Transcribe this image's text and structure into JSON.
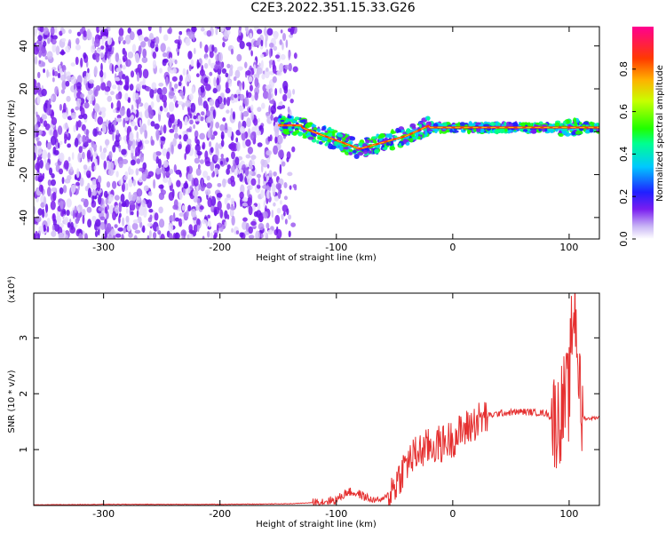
{
  "title": "C2E3.2022.351.15.33.G26",
  "chart_data": [
    {
      "type": "heatmap",
      "xlabel": "Height of straight line (km)",
      "ylabel": "Frequency (Hz)",
      "xlim": [
        -360,
        126
      ],
      "ylim": [
        -50,
        49
      ],
      "xticks": [
        -300,
        -200,
        -100,
        0,
        100
      ],
      "yticks": [
        -40,
        -20,
        0,
        20,
        40
      ],
      "colorbar": {
        "label": "Normalized spectral amplitude",
        "range": [
          0.0,
          1.0
        ],
        "ticks": [
          "0.0",
          "0.2",
          "0.4",
          "0.6",
          "0.8"
        ],
        "tick_values": [
          0.0,
          0.2,
          0.4,
          0.6,
          0.8
        ]
      },
      "features": {
        "noise_region_x": [
          -360,
          -135
        ],
        "signal_line_frequency": 2,
        "signal_line_x": [
          -150,
          126
        ]
      }
    },
    {
      "type": "line",
      "xlabel": "Height of straight line (km)",
      "ylabel": "SNR (10 * v/v)",
      "yscale_label": "(x10⁴)",
      "xlim": [
        -360,
        126
      ],
      "ylim": [
        0,
        3.8
      ],
      "xticks": [
        -300,
        -200,
        -100,
        0,
        100
      ],
      "yticks": [
        1,
        2,
        3
      ],
      "series": [
        {
          "color": "#e53030",
          "x": [
            -360,
            -300,
            -200,
            -140,
            -120,
            -100,
            -90,
            -80,
            -70,
            -60,
            -50,
            -40,
            -30,
            -20,
            -10,
            0,
            10,
            20,
            30,
            40,
            60,
            80,
            90,
            95,
            100,
            103,
            105,
            107,
            110,
            115,
            126
          ],
          "values": [
            0.01,
            0.02,
            0.02,
            0.03,
            0.05,
            0.1,
            0.25,
            0.2,
            0.1,
            0.1,
            0.35,
            0.75,
            0.95,
            1.05,
            1.1,
            1.2,
            1.35,
            1.5,
            1.6,
            1.65,
            1.68,
            1.65,
            1.5,
            1.8,
            2.0,
            3.4,
            3.6,
            3.0,
            1.6,
            1.55,
            1.58
          ]
        }
      ]
    }
  ]
}
